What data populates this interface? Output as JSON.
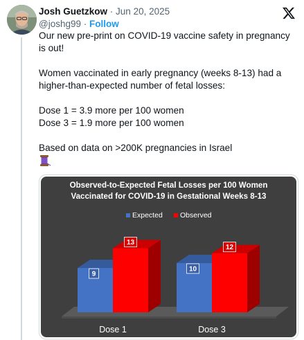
{
  "tweet": {
    "author_name": "Josh Guetzkow",
    "separator": "·",
    "date": "Jun 20, 2025",
    "handle": "@joshg99",
    "follow_label": "Follow",
    "text_lines": [
      "Our new pre-print on COVID-19 vaccine safety in pregnancy",
      "is out!",
      "",
      "Women vaccinated in early pregnancy (weeks 8-13) had a",
      "higher-than-expected number of fetal losses:",
      "",
      "Dose 1 = 3.9 more per 100 women",
      "Dose 3 = 1.9 more per 100 women",
      "",
      "Based on data on >200K pregnancies in Israel"
    ]
  },
  "icons": {
    "platform": "x-logo-icon",
    "emoji": "spool-of-thread-icon"
  },
  "colors": {
    "expected": "#4472c4",
    "observed": "#ff0000",
    "chart_bg": "#3f3f3f"
  },
  "chart_data": {
    "type": "bar",
    "title": "Observed-to-Expected Fetal Losses per 100 Women Vaccinated for COVID-19 in Gestational Weeks 8-13",
    "title_lines": [
      "Observed-to-Expected Fetal Losses per 100 Women",
      "Vaccinated for COVID-19 in Gestational Weeks 8-13"
    ],
    "categories": [
      "Dose 1",
      "Dose 3"
    ],
    "series": [
      {
        "name": "Expected",
        "values": [
          9,
          10
        ]
      },
      {
        "name": "Observed",
        "values": [
          13,
          12
        ]
      }
    ],
    "ylim": [
      0,
      15
    ],
    "legend": "top-center",
    "grid": false,
    "style": "3d"
  }
}
